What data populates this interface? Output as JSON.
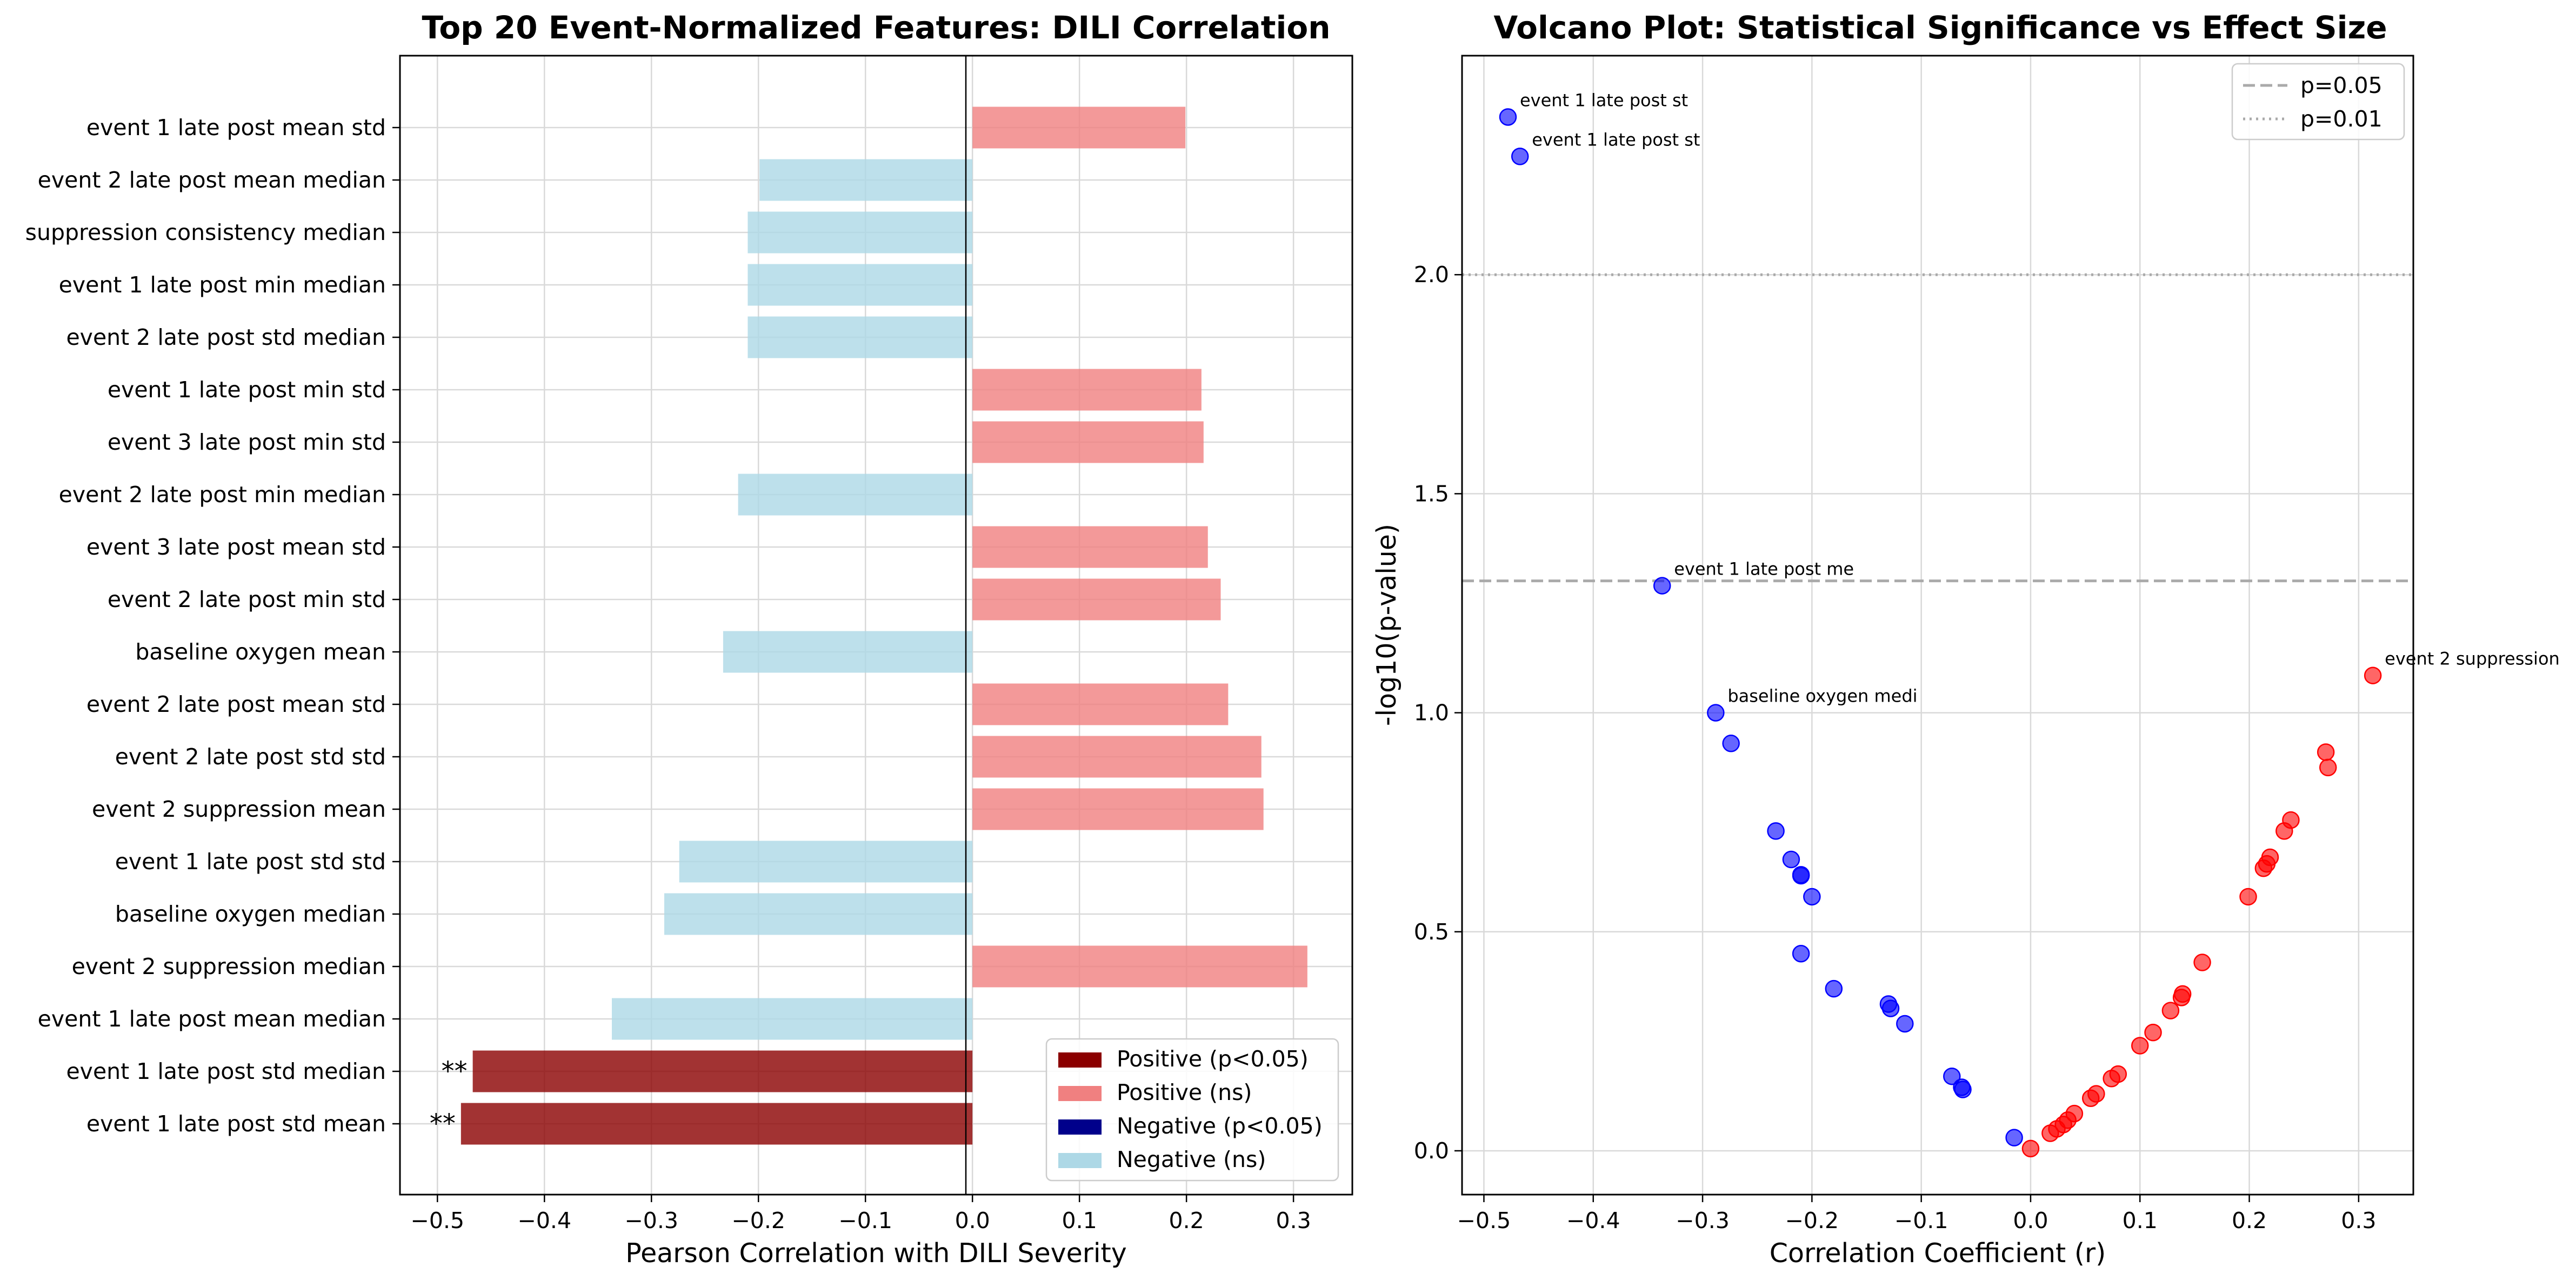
{
  "chart_data": [
    {
      "type": "bar",
      "orientation": "horizontal",
      "title": "Top 20 Event-Normalized Features: DILI Correlation",
      "xlabel": "Pearson Correlation with DILI Severity",
      "ylabel": "",
      "xlim": [
        -0.535,
        0.355
      ],
      "xticks": [
        -0.5,
        -0.4,
        -0.3,
        -0.2,
        -0.1,
        0.0,
        0.1,
        0.2,
        0.3
      ],
      "xtick_labels": [
        "−0.5",
        "−0.4",
        "−0.3",
        "−0.2",
        "−0.1",
        "0.0",
        "0.1",
        "0.2",
        "0.3"
      ],
      "grid": true,
      "categories": [
        "event 1 late post mean std",
        "event 2 late post mean median",
        "suppression consistency median",
        "event 1 late post min median",
        "event 2 late post std median",
        "event 1 late post min std",
        "event 3 late post min std",
        "event 2 late post min median",
        "event 3 late post mean std",
        "event 2 late post min std",
        "baseline oxygen mean",
        "event 2 late post mean std",
        "event 2 late post std std",
        "event 2 suppression mean",
        "event 1 late post std std",
        "baseline oxygen median",
        "event 2 suppression median",
        "event 1 late post mean median",
        "event 1 late post std median",
        "event 1 late post std mean"
      ],
      "values": [
        0.199,
        -0.199,
        -0.21,
        -0.21,
        -0.21,
        0.214,
        0.216,
        -0.219,
        0.22,
        0.232,
        -0.233,
        0.239,
        0.27,
        0.272,
        -0.274,
        -0.288,
        0.313,
        -0.337,
        -0.467,
        -0.478
      ],
      "significant": [
        false,
        false,
        false,
        false,
        false,
        false,
        false,
        false,
        false,
        false,
        false,
        false,
        false,
        false,
        false,
        false,
        false,
        false,
        true,
        true
      ],
      "significance_marks": [
        "",
        "",
        "",
        "",
        "",
        "",
        "",
        "",
        "",
        "",
        "",
        "",
        "",
        "",
        "",
        "",
        "",
        "",
        "**",
        "**"
      ],
      "legend": {
        "placement": "lower-right",
        "entries": [
          {
            "label": "Positive (p<0.05)",
            "color": "#8b0000"
          },
          {
            "label": "Positive (ns)",
            "color": "#f08080"
          },
          {
            "label": "Negative (p<0.05)",
            "color": "#00008b"
          },
          {
            "label": "Negative (ns)",
            "color": "#add8e6"
          }
        ]
      }
    },
    {
      "type": "scatter",
      "title": "Volcano Plot: Statistical Significance vs Effect Size",
      "xlabel": "Correlation Coefficient (r)",
      "ylabel": "-log10(p-value)",
      "xlim": [
        -0.52,
        0.35
      ],
      "ylim": [
        -0.1,
        2.5
      ],
      "xticks": [
        -0.5,
        -0.4,
        -0.3,
        -0.2,
        -0.1,
        0.0,
        0.1,
        0.2,
        0.3
      ],
      "xtick_labels": [
        "−0.5",
        "−0.4",
        "−0.3",
        "−0.2",
        "−0.1",
        "0.0",
        "0.1",
        "0.2",
        "0.3"
      ],
      "yticks": [
        0.0,
        0.5,
        1.0,
        1.5,
        2.0
      ],
      "ytick_labels": [
        "0.0",
        "0.5",
        "1.0",
        "1.5",
        "2.0"
      ],
      "grid": true,
      "reference_lines": [
        {
          "y": 1.301,
          "style": "dashed",
          "label": "p=0.05"
        },
        {
          "y": 2.0,
          "style": "dotted",
          "label": "p=0.01"
        }
      ],
      "legend": {
        "placement": "top-right"
      },
      "series": [
        {
          "color": "#0000ff",
          "points": [
            {
              "x": -0.478,
              "y": 2.36
            },
            {
              "x": -0.467,
              "y": 2.27
            },
            {
              "x": -0.337,
              "y": 1.29
            },
            {
              "x": -0.288,
              "y": 1.0
            },
            {
              "x": -0.274,
              "y": 0.93
            },
            {
              "x": -0.233,
              "y": 0.73
            },
            {
              "x": -0.219,
              "y": 0.665
            },
            {
              "x": -0.21,
              "y": 0.63
            },
            {
              "x": -0.21,
              "y": 0.628
            },
            {
              "x": -0.2,
              "y": 0.58
            },
            {
              "x": -0.21,
              "y": 0.45
            },
            {
              "x": -0.18,
              "y": 0.37
            },
            {
              "x": -0.13,
              "y": 0.335
            },
            {
              "x": -0.128,
              "y": 0.325
            },
            {
              "x": -0.115,
              "y": 0.29
            },
            {
              "x": -0.072,
              "y": 0.17
            },
            {
              "x": -0.063,
              "y": 0.145
            },
            {
              "x": -0.062,
              "y": 0.14
            },
            {
              "x": -0.015,
              "y": 0.03
            }
          ]
        },
        {
          "color": "#ff0000",
          "points": [
            {
              "x": 0.0,
              "y": 0.005
            },
            {
              "x": 0.018,
              "y": 0.04
            },
            {
              "x": 0.024,
              "y": 0.05
            },
            {
              "x": 0.03,
              "y": 0.06
            },
            {
              "x": 0.034,
              "y": 0.07
            },
            {
              "x": 0.04,
              "y": 0.085
            },
            {
              "x": 0.055,
              "y": 0.12
            },
            {
              "x": 0.06,
              "y": 0.13
            },
            {
              "x": 0.074,
              "y": 0.165
            },
            {
              "x": 0.08,
              "y": 0.175
            },
            {
              "x": 0.1,
              "y": 0.24
            },
            {
              "x": 0.112,
              "y": 0.27
            },
            {
              "x": 0.128,
              "y": 0.32
            },
            {
              "x": 0.138,
              "y": 0.35
            },
            {
              "x": 0.139,
              "y": 0.358
            },
            {
              "x": 0.157,
              "y": 0.43
            },
            {
              "x": 0.199,
              "y": 0.58
            },
            {
              "x": 0.213,
              "y": 0.645
            },
            {
              "x": 0.216,
              "y": 0.655
            },
            {
              "x": 0.219,
              "y": 0.67
            },
            {
              "x": 0.232,
              "y": 0.73
            },
            {
              "x": 0.238,
              "y": 0.755
            },
            {
              "x": 0.27,
              "y": 0.91
            },
            {
              "x": 0.272,
              "y": 0.875
            },
            {
              "x": 0.313,
              "y": 1.085
            }
          ]
        }
      ],
      "annotations": [
        {
          "x": -0.478,
          "y": 2.36,
          "text": "event 1 late post st"
        },
        {
          "x": -0.467,
          "y": 2.27,
          "text": "event 1 late post st"
        },
        {
          "x": -0.337,
          "y": 1.29,
          "text": "event 1 late post me"
        },
        {
          "x": -0.288,
          "y": 1.0,
          "text": "baseline oxygen medi"
        },
        {
          "x": 0.313,
          "y": 1.085,
          "text": "event 2 suppression"
        }
      ]
    }
  ]
}
